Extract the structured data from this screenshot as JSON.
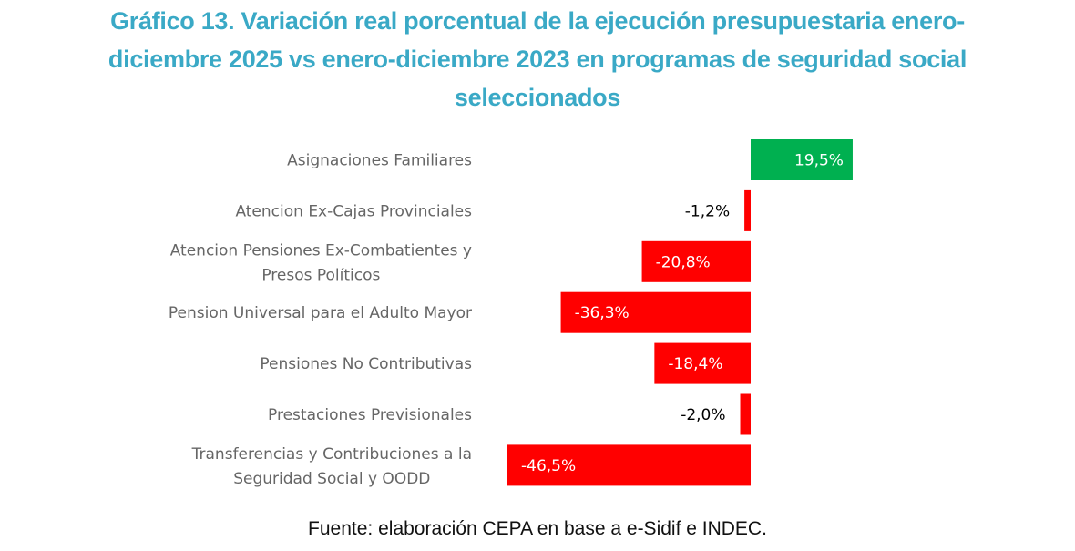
{
  "chart_data": {
    "type": "bar",
    "orientation": "horizontal",
    "title": "Gráfico 13. Variación real porcentual de la ejecución presupuestaria enero-diciembre 2025 vs enero-diciembre 2023 en programas de seguridad social seleccionados",
    "title_lines": [
      "Gráfico 13. Variación real porcentual de la ejecución presupuestaria enero-",
      "diciembre 2025 vs enero-diciembre 2023 en programas de seguridad social",
      "seleccionados"
    ],
    "xlabel": "",
    "ylabel": "",
    "unit": "%",
    "xlim": [
      -46.5,
      19.5
    ],
    "grid": false,
    "legend": "none",
    "categories": [
      [
        "Asignaciones Familiares"
      ],
      [
        "Atencion Ex-Cajas Provinciales"
      ],
      [
        "Atencion Pensiones Ex-Combatientes y",
        "Presos Políticos"
      ],
      [
        "Pension Universal para el Adulto Mayor"
      ],
      [
        "Pensiones No Contributivas"
      ],
      [
        "Prestaciones Previsionales"
      ],
      [
        "Transferencias y Contribuciones a la",
        "Seguridad Social y OODD"
      ]
    ],
    "values": [
      19.5,
      -1.2,
      -20.8,
      -36.3,
      -18.4,
      -2.0,
      -46.5
    ],
    "data_labels": [
      "19,5%",
      "-1,2%",
      "-20,8%",
      "-36,3%",
      "-18,4%",
      "-2,0%",
      "-46,5%"
    ],
    "colors": {
      "positive": "#00B050",
      "negative": "#FF0000"
    },
    "source": "Fuente: elaboración CEPA en base a e-Sidif e INDEC."
  }
}
